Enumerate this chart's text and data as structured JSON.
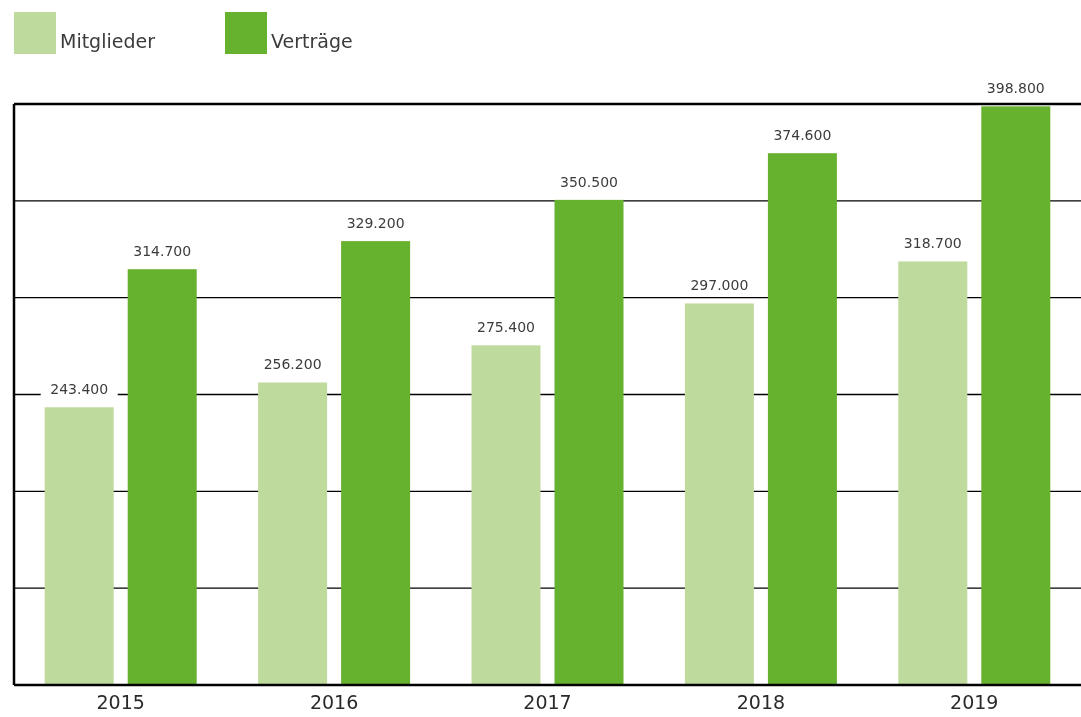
{
  "chart_data": {
    "type": "bar",
    "categories": [
      "2015",
      "2016",
      "2017",
      "2018",
      "2019"
    ],
    "series": [
      {
        "name": "Mitglieder",
        "color": "#bfda9d",
        "values": [
          243400,
          256200,
          275400,
          297000,
          318700
        ],
        "value_labels": [
          "243.400",
          "256.200",
          "275.400",
          "297.000",
          "318.700"
        ]
      },
      {
        "name": "Verträge",
        "color": "#66b22f",
        "values": [
          314700,
          329200,
          350500,
          374600,
          398800
        ],
        "value_labels": [
          "314.700",
          "329.200",
          "350.500",
          "374.600",
          "398.800"
        ]
      }
    ],
    "ylim": [
      100000,
      400000
    ],
    "yticks": [
      {
        "value": 100000,
        "label": null
      },
      {
        "value": 150000,
        "label": null
      },
      {
        "value": 200000,
        "label": null
      },
      {
        "value": 250000,
        "label": null
      },
      {
        "value": 300000,
        "label": null
      },
      {
        "value": 350000,
        "label": null
      },
      {
        "value": 400000,
        "label": null
      }
    ],
    "grid": "y",
    "legend": "top left",
    "tick_labels": "x"
  }
}
